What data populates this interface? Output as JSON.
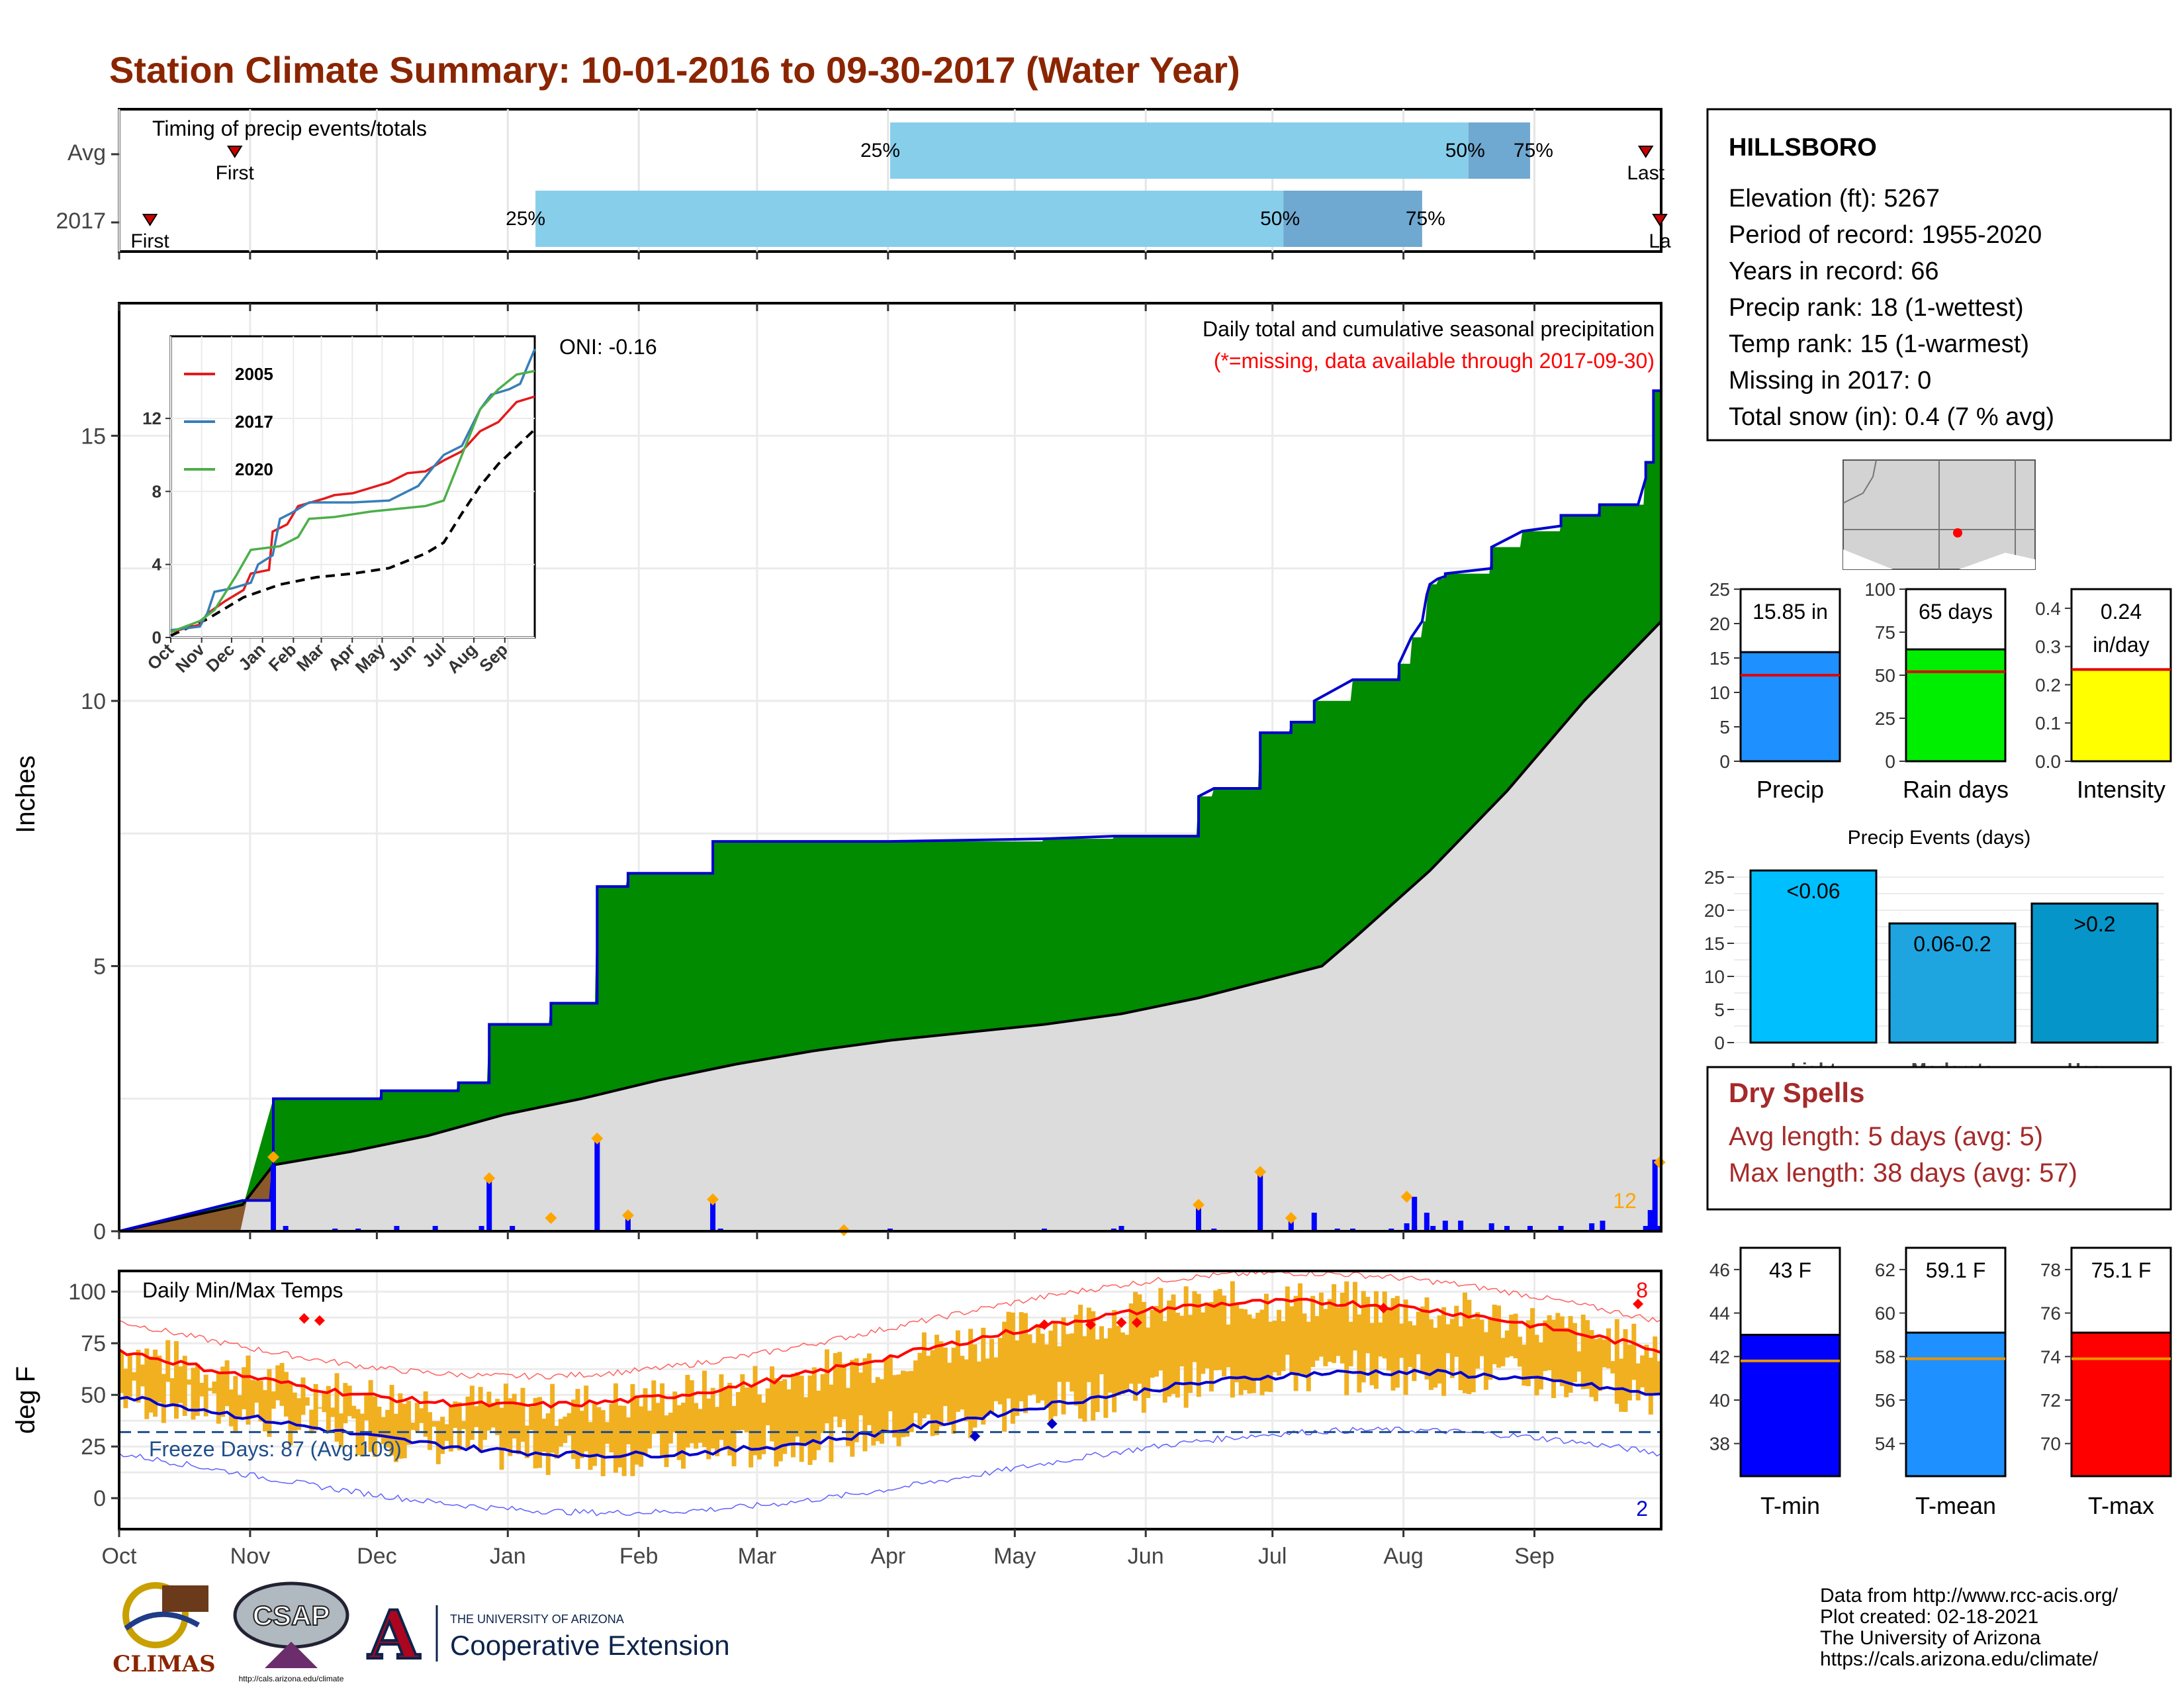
{
  "title": "Station Climate Summary: 10-01-2016 to 09-30-2017 (Water Year)",
  "months": [
    "Oct",
    "Nov",
    "Dec",
    "Jan",
    "Feb",
    "Mar",
    "Apr",
    "May",
    "Jun",
    "Jul",
    "Aug",
    "Sep"
  ],
  "timing": {
    "label": "Timing of precip events/totals",
    "rows": [
      {
        "name": "Avg",
        "first": 0.075,
        "p25": 0.5,
        "p50": 0.875,
        "p75": 0.915,
        "last_label": "Last",
        "last": 0.99
      },
      {
        "name": "2017",
        "first": 0.02,
        "p25": 0.27,
        "p50": 0.755,
        "p75": 0.845,
        "last_label": "La",
        "last": 1.0
      }
    ],
    "first_label": "First",
    "p_labels": [
      "25%",
      "50%",
      "75%"
    ]
  },
  "precip": {
    "title": "Daily total and cumulative seasonal precipitation",
    "subtitle": "(*=missing, data available through 2017-09-30)",
    "oni": "ONI: -0.16",
    "ylabel": "Inches",
    "yticks": [
      0,
      5,
      10,
      15
    ],
    "ymax": 17.5,
    "corner_count": "12",
    "cum2017": [
      [
        0,
        0
      ],
      [
        0.08,
        0.58
      ],
      [
        0.098,
        0.58
      ],
      [
        0.1,
        1.28
      ],
      [
        0.1,
        2.5
      ],
      [
        0.17,
        2.5
      ],
      [
        0.17,
        2.65
      ],
      [
        0.22,
        2.65
      ],
      [
        0.22,
        2.8
      ],
      [
        0.24,
        2.8
      ],
      [
        0.24,
        3.9
      ],
      [
        0.28,
        3.9
      ],
      [
        0.28,
        4.3
      ],
      [
        0.31,
        4.3
      ],
      [
        0.31,
        6.5
      ],
      [
        0.33,
        6.5
      ],
      [
        0.33,
        6.75
      ],
      [
        0.385,
        6.75
      ],
      [
        0.385,
        7.35
      ],
      [
        0.5,
        7.35
      ],
      [
        0.6,
        7.4
      ],
      [
        0.645,
        7.45
      ],
      [
        0.7,
        7.45
      ],
      [
        0.7,
        8.2
      ],
      [
        0.71,
        8.35
      ],
      [
        0.74,
        8.35
      ],
      [
        0.74,
        9.4
      ],
      [
        0.76,
        9.4
      ],
      [
        0.76,
        9.6
      ],
      [
        0.775,
        9.6
      ],
      [
        0.775,
        10.0
      ],
      [
        0.8,
        10.4
      ],
      [
        0.83,
        10.4
      ],
      [
        0.83,
        10.7
      ],
      [
        0.838,
        11.2
      ],
      [
        0.845,
        11.5
      ],
      [
        0.848,
        12.0
      ],
      [
        0.85,
        12.2
      ],
      [
        0.855,
        12.3
      ],
      [
        0.86,
        12.35
      ],
      [
        0.86,
        12.4
      ],
      [
        0.89,
        12.5
      ],
      [
        0.89,
        12.9
      ],
      [
        0.91,
        13.2
      ],
      [
        0.935,
        13.3
      ],
      [
        0.935,
        13.5
      ],
      [
        0.96,
        13.5
      ],
      [
        0.96,
        13.7
      ],
      [
        0.985,
        13.7
      ],
      [
        0.99,
        14.2
      ],
      [
        0.99,
        14.5
      ],
      [
        0.995,
        14.5
      ],
      [
        0.995,
        15.85
      ],
      [
        1.0,
        15.85
      ]
    ],
    "avg_cum": [
      [
        0,
        0
      ],
      [
        0.08,
        0.5
      ],
      [
        0.1,
        1.25
      ],
      [
        0.15,
        1.5
      ],
      [
        0.2,
        1.8
      ],
      [
        0.25,
        2.2
      ],
      [
        0.3,
        2.5
      ],
      [
        0.35,
        2.85
      ],
      [
        0.4,
        3.15
      ],
      [
        0.45,
        3.4
      ],
      [
        0.5,
        3.6
      ],
      [
        0.55,
        3.75
      ],
      [
        0.6,
        3.9
      ],
      [
        0.65,
        4.1
      ],
      [
        0.7,
        4.4
      ],
      [
        0.74,
        4.7
      ],
      [
        0.78,
        5.0
      ],
      [
        0.8,
        5.5
      ],
      [
        0.85,
        6.8
      ],
      [
        0.9,
        8.3
      ],
      [
        0.95,
        10.0
      ],
      [
        1.0,
        11.5
      ]
    ],
    "daily_bars": [
      [
        0.1,
        1.25
      ],
      [
        0.108,
        0.1
      ],
      [
        0.14,
        0.05
      ],
      [
        0.155,
        0.05
      ],
      [
        0.18,
        0.1
      ],
      [
        0.205,
        0.1
      ],
      [
        0.235,
        0.1
      ],
      [
        0.24,
        0.95
      ],
      [
        0.255,
        0.1
      ],
      [
        0.31,
        1.75
      ],
      [
        0.33,
        0.28
      ],
      [
        0.385,
        0.6
      ],
      [
        0.39,
        0.05
      ],
      [
        0.5,
        0.05
      ],
      [
        0.6,
        0.05
      ],
      [
        0.645,
        0.05
      ],
      [
        0.65,
        0.1
      ],
      [
        0.7,
        0.45
      ],
      [
        0.71,
        0.05
      ],
      [
        0.74,
        1.1
      ],
      [
        0.76,
        0.2
      ],
      [
        0.775,
        0.35
      ],
      [
        0.79,
        0.05
      ],
      [
        0.8,
        0.05
      ],
      [
        0.825,
        0.05
      ],
      [
        0.835,
        0.15
      ],
      [
        0.84,
        0.1
      ],
      [
        0.84,
        0.65
      ],
      [
        0.848,
        0.35
      ],
      [
        0.852,
        0.1
      ],
      [
        0.86,
        0.2
      ],
      [
        0.87,
        0.2
      ],
      [
        0.89,
        0.15
      ],
      [
        0.9,
        0.1
      ],
      [
        0.915,
        0.1
      ],
      [
        0.935,
        0.1
      ],
      [
        0.955,
        0.15
      ],
      [
        0.962,
        0.2
      ],
      [
        0.99,
        0.1
      ],
      [
        0.993,
        0.4
      ],
      [
        0.996,
        1.35
      ],
      [
        0.998,
        0.1
      ]
    ],
    "record_marks": [
      [
        0.1,
        1.4
      ],
      [
        0.24,
        1.0
      ],
      [
        0.28,
        0.25
      ],
      [
        0.31,
        1.75
      ],
      [
        0.33,
        0.3
      ],
      [
        0.385,
        0.6
      ],
      [
        0.47,
        0.02
      ],
      [
        0.7,
        0.5
      ],
      [
        0.74,
        1.12
      ],
      [
        0.76,
        0.25
      ],
      [
        0.835,
        0.65
      ],
      [
        0.999,
        1.3
      ]
    ]
  },
  "inset": {
    "yticks": [
      0,
      4,
      8,
      12
    ],
    "ymax": 16.5,
    "months": [
      "Oct",
      "Nov",
      "Dec",
      "Jan",
      "Feb",
      "Mar",
      "Apr",
      "May",
      "Jun",
      "Jul",
      "Aug",
      "Sep"
    ],
    "legend": [
      {
        "name": "2005",
        "color": "#e41a1c"
      },
      {
        "name": "2017",
        "color": "#377eb8"
      },
      {
        "name": "2020",
        "color": "#4daf4a"
      }
    ],
    "series": {
      "2005": [
        [
          0,
          0.3
        ],
        [
          0.08,
          0.7
        ],
        [
          0.1,
          1.3
        ],
        [
          0.15,
          2.0
        ],
        [
          0.2,
          2.6
        ],
        [
          0.22,
          3.5
        ],
        [
          0.27,
          3.7
        ],
        [
          0.28,
          5.8
        ],
        [
          0.32,
          6.2
        ],
        [
          0.35,
          7.2
        ],
        [
          0.42,
          7.6
        ],
        [
          0.45,
          7.8
        ],
        [
          0.5,
          7.9
        ],
        [
          0.55,
          8.2
        ],
        [
          0.6,
          8.5
        ],
        [
          0.65,
          9.0
        ],
        [
          0.7,
          9.1
        ],
        [
          0.75,
          9.7
        ],
        [
          0.8,
          10.2
        ],
        [
          0.85,
          11.3
        ],
        [
          0.9,
          11.8
        ],
        [
          0.95,
          12.9
        ],
        [
          1.0,
          13.2
        ]
      ],
      "2017": [
        [
          0,
          0.4
        ],
        [
          0.08,
          0.6
        ],
        [
          0.1,
          1.3
        ],
        [
          0.12,
          2.5
        ],
        [
          0.17,
          2.7
        ],
        [
          0.22,
          3.0
        ],
        [
          0.24,
          4.0
        ],
        [
          0.28,
          4.5
        ],
        [
          0.3,
          6.5
        ],
        [
          0.33,
          6.8
        ],
        [
          0.38,
          7.4
        ],
        [
          0.5,
          7.4
        ],
        [
          0.6,
          7.5
        ],
        [
          0.68,
          8.3
        ],
        [
          0.72,
          9.3
        ],
        [
          0.75,
          10.0
        ],
        [
          0.8,
          10.5
        ],
        [
          0.85,
          12.5
        ],
        [
          0.88,
          13.3
        ],
        [
          0.93,
          13.6
        ],
        [
          0.96,
          13.9
        ],
        [
          1.0,
          15.8
        ]
      ],
      "2020": [
        [
          0,
          0.3
        ],
        [
          0.08,
          0.9
        ],
        [
          0.12,
          1.5
        ],
        [
          0.18,
          3.4
        ],
        [
          0.22,
          4.8
        ],
        [
          0.3,
          5.0
        ],
        [
          0.35,
          5.5
        ],
        [
          0.38,
          6.5
        ],
        [
          0.45,
          6.6
        ],
        [
          0.55,
          6.9
        ],
        [
          0.6,
          7.0
        ],
        [
          0.7,
          7.2
        ],
        [
          0.75,
          7.5
        ],
        [
          0.8,
          10.0
        ],
        [
          0.85,
          12.5
        ],
        [
          0.9,
          13.6
        ],
        [
          0.95,
          14.4
        ],
        [
          1.0,
          14.6
        ]
      ],
      "avg": [
        [
          0,
          0.1
        ],
        [
          0.1,
          1.0
        ],
        [
          0.2,
          2.2
        ],
        [
          0.3,
          2.9
        ],
        [
          0.4,
          3.3
        ],
        [
          0.5,
          3.5
        ],
        [
          0.6,
          3.8
        ],
        [
          0.7,
          4.6
        ],
        [
          0.75,
          5.2
        ],
        [
          0.8,
          6.8
        ],
        [
          0.85,
          8.3
        ],
        [
          0.9,
          9.5
        ],
        [
          1.0,
          11.4
        ]
      ]
    }
  },
  "temps": {
    "title": "Daily Min/Max Temps",
    "ylabel": "deg F",
    "yticks": [
      0,
      25,
      50,
      75,
      100
    ],
    "ymin": -15,
    "ymax": 110,
    "freeze_label": "Freeze Days: 87 (Avg:109)",
    "freeze_line": 32,
    "record_high_count": "8",
    "record_low_count": "2"
  },
  "station": {
    "name": "HILLSBORO",
    "lines": [
      "Elevation (ft): 5267",
      "Period of record: 1955-2020",
      "Years in record: 66",
      "Precip rank: 18 (1-wettest)",
      "Temp rank: 15 (1-warmest)",
      "Missing in 2017: 0",
      "Total snow (in): 0.4 (7 % avg)"
    ]
  },
  "summary_bars": [
    {
      "label": "Precip",
      "value_label": "15.85 in",
      "value": 15.85,
      "avg": 12.5,
      "ymax": 25,
      "yticks": [
        0,
        5,
        10,
        15,
        20,
        25
      ],
      "color": "#1e90ff"
    },
    {
      "label": "Rain days",
      "value_label": "65 days",
      "value": 65,
      "avg": 52,
      "ymax": 100,
      "yticks": [
        0,
        25,
        50,
        75,
        100
      ],
      "color": "#00ee00"
    },
    {
      "label": "Intensity",
      "value_label": "0.24 in/day",
      "value": 0.24,
      "avg": 0.24,
      "ymax": 0.45,
      "yticks": [
        "0.0",
        "0.1",
        "0.2",
        "0.3",
        "0.4"
      ],
      "color": "#ffff00"
    }
  ],
  "events": {
    "title": "Precip Events (days)",
    "yticks": [
      0,
      5,
      10,
      15,
      20,
      25
    ],
    "ymax": 27,
    "bars": [
      {
        "cat": "Light",
        "range": "<0.06",
        "value": 26,
        "color": "#00bfff"
      },
      {
        "cat": "Moderate",
        "range": "0.06-0.2",
        "value": 18,
        "color": "#1ea5e0"
      },
      {
        "cat": "Heavy",
        "range": ">0.2",
        "value": 21,
        "color": "#0595c8"
      }
    ]
  },
  "dry_spells": {
    "title": "Dry Spells",
    "avg": "Avg length: 5 days (avg: 5)",
    "max": "Max length: 38 days (avg: 57)"
  },
  "temp_bars": [
    {
      "label": "T-min",
      "value_label": "43 F",
      "value": 43,
      "avg": 41.8,
      "ymin": 36.5,
      "ymax": 47,
      "yticks": [
        38,
        40,
        42,
        44,
        46
      ],
      "color": "#0000ff"
    },
    {
      "label": "T-mean",
      "value_label": "59.1 F",
      "value": 59.1,
      "avg": 57.9,
      "ymin": 52.5,
      "ymax": 63,
      "yticks": [
        54,
        56,
        58,
        60,
        62
      ],
      "color": "#1e90ff"
    },
    {
      "label": "T-max",
      "value_label": "75.1 F",
      "value": 75.1,
      "avg": 73.9,
      "ymin": 68.5,
      "ymax": 79,
      "yticks": [
        70,
        72,
        74,
        76,
        78
      ],
      "color": "#ff0000"
    }
  ],
  "footer": [
    "Data from http://www.rcc-acis.org/",
    "Plot created: 02-18-2021",
    "The University of Arizona",
    "https://cals.arizona.edu/climate/"
  ],
  "logos": {
    "climas": "CLIMAS",
    "csap": "CSAP",
    "csap_url": "http://cals.arizona.edu/climate",
    "ua_small": "THE UNIVERSITY OF ARIZONA",
    "ua_big": "Cooperative Extension",
    "ua_letter": "A"
  }
}
